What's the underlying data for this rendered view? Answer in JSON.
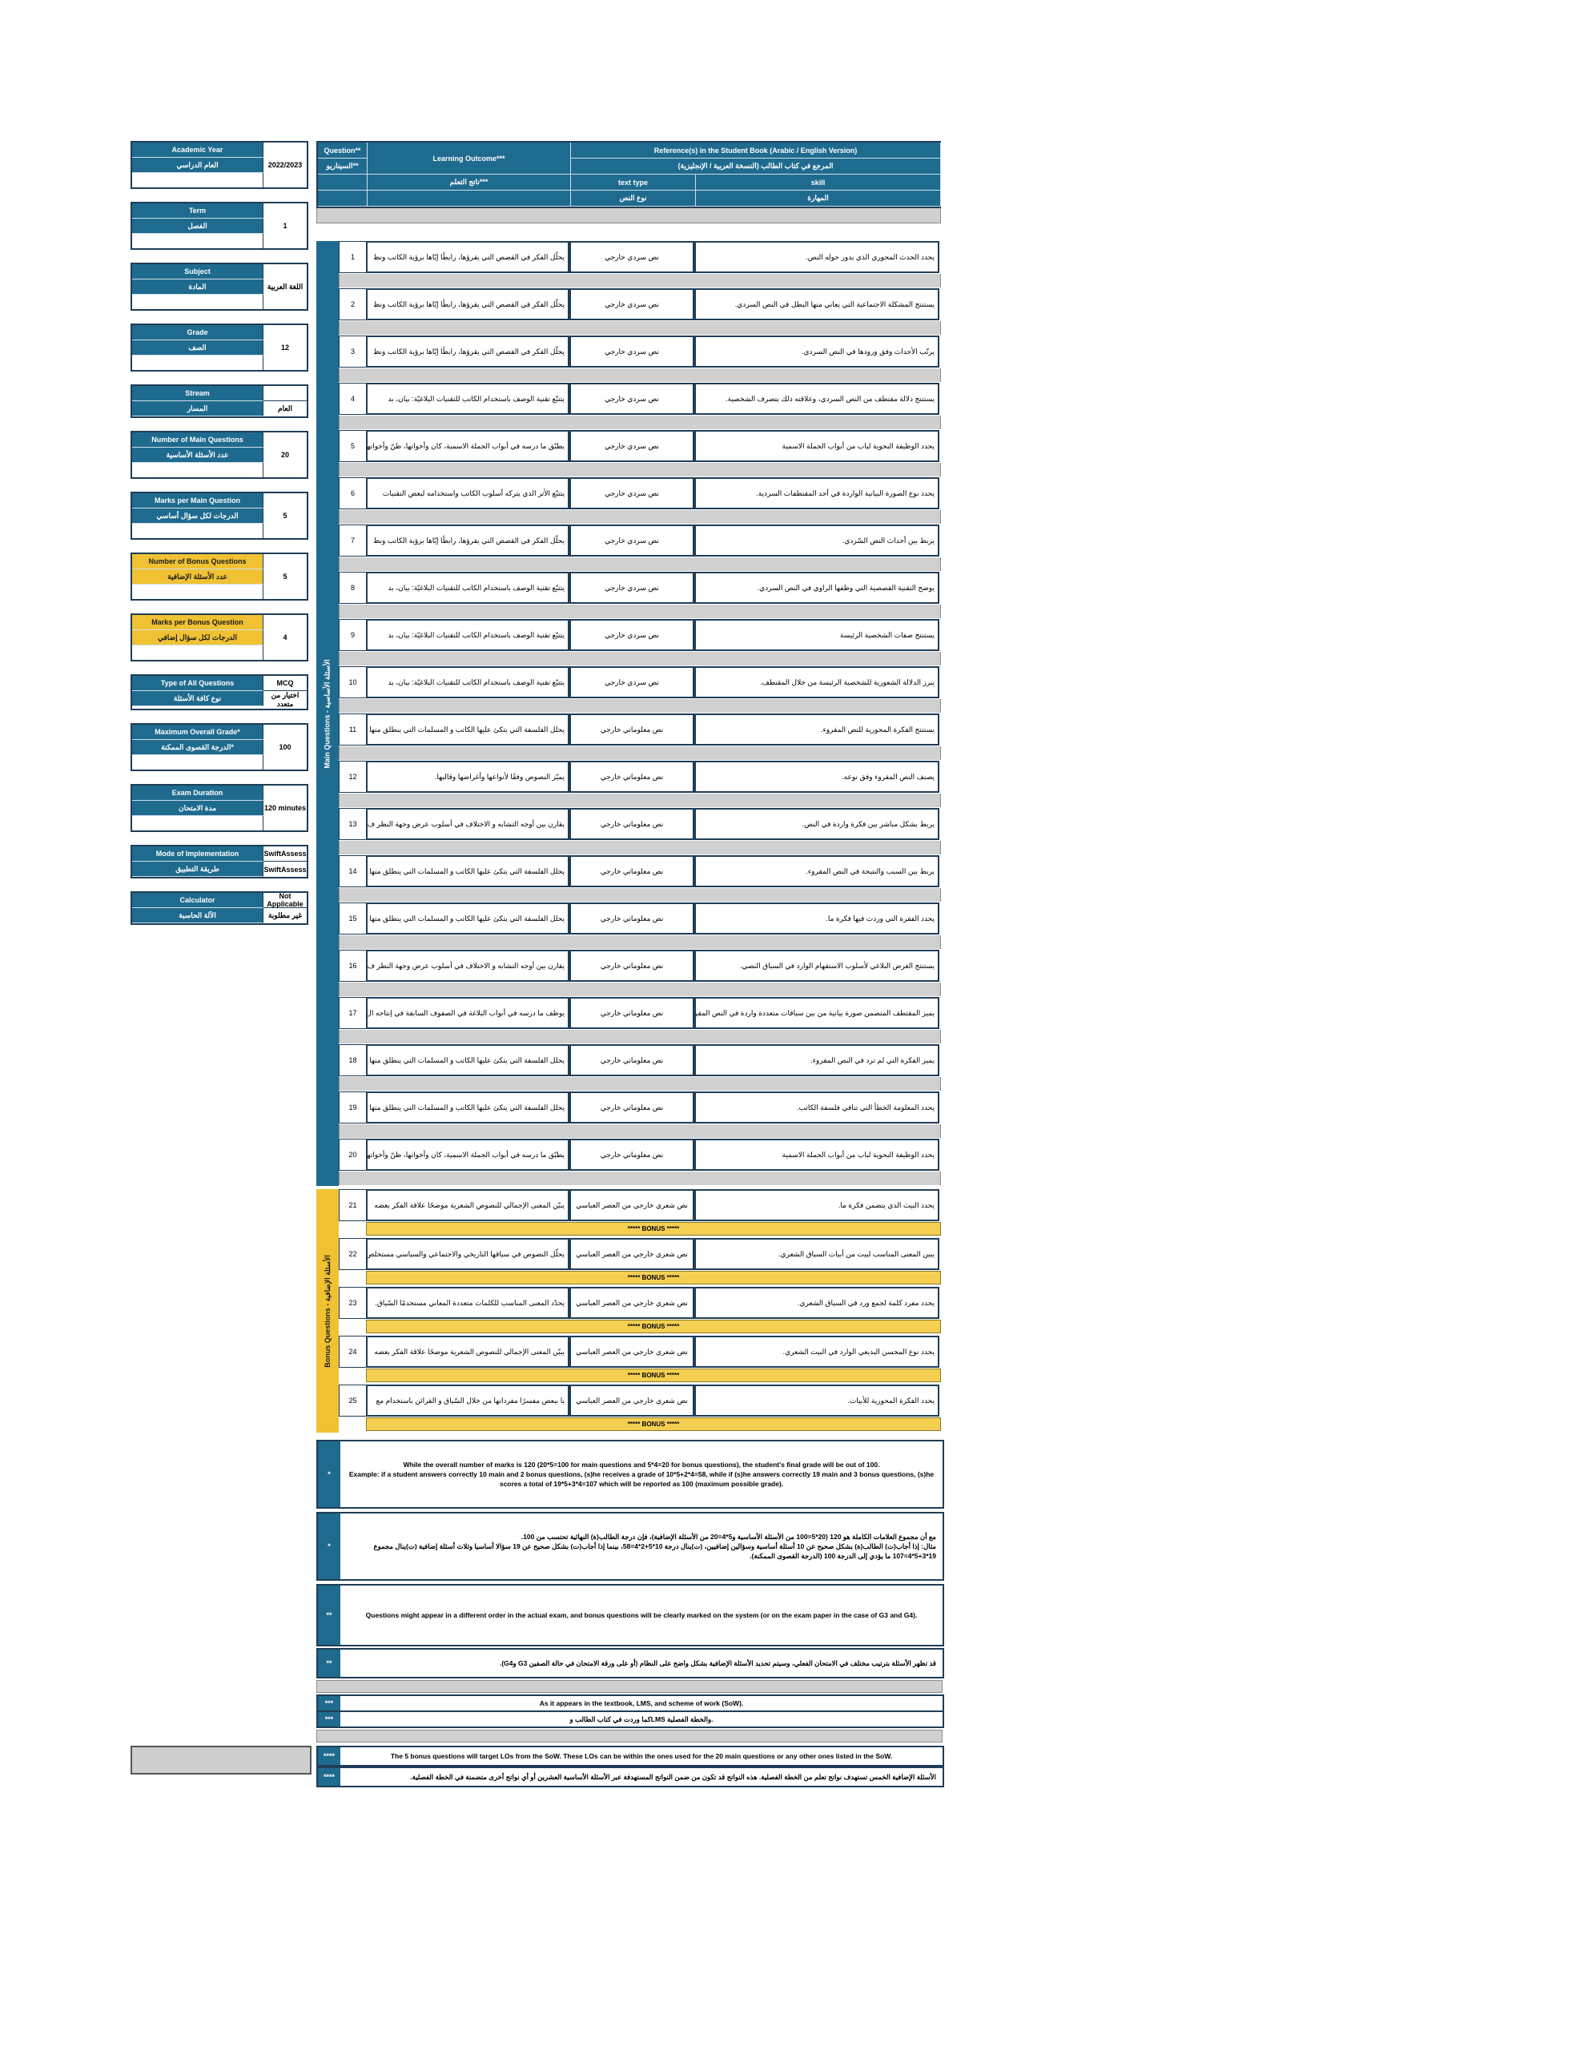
{
  "info": {
    "academic_year_en": "Academic Year",
    "academic_year_ar": "العام الدراسي",
    "academic_year_val": "2022/2023",
    "term_en": "Term",
    "term_ar": "الفصل",
    "term_val": "1",
    "subject_en": "Subject",
    "subject_ar": "المادة",
    "subject_val": "اللغة العربية",
    "grade_en": "Grade",
    "grade_ar": "الصف",
    "grade_val": "12",
    "stream_en": "Stream",
    "stream_ar": "المسار",
    "stream_val": "العام",
    "num_main_en": "Number of Main Questions",
    "num_main_ar": "عدد الأسئلة الأساسية",
    "num_main_val": "20",
    "marks_main_en": "Marks per Main Question",
    "marks_main_ar": "الدرجات لكل سؤال أساسي",
    "marks_main_val": "5",
    "num_bonus_en": "Number of Bonus Questions",
    "num_bonus_ar": "عدد الأسئلة الإضافية",
    "num_bonus_val": "5",
    "marks_bonus_en": "Marks per Bonus Question",
    "marks_bonus_ar": "الدرجات لكل سؤال إضافي",
    "marks_bonus_val": "4",
    "type_en": "Type of All Questions",
    "type_ar": "نوع كافة الأسئلة",
    "type_val1": "MCQ",
    "type_val2": "اختيار من متعدد",
    "max_en": "Maximum Overall Grade*",
    "max_ar": "الدرجة القصوى الممكنة*",
    "max_val": "100",
    "duration_en": "Exam Duration",
    "duration_ar": "مدة الامتحان",
    "duration_val": "120 minutes",
    "mode_en": "Mode of Implementation",
    "mode_ar": "طريقة التطبيق",
    "mode_val1": "SwiftAssess",
    "mode_val2": "SwiftAssess",
    "calc_en": "Calculator",
    "calc_ar": "الآلة الحاسبة",
    "calc_val1": "Not Applicable",
    "calc_val2": "غير مطلوبة"
  },
  "header": {
    "question": "Question**",
    "question_ar": "السيناريو**",
    "lo_en": "Learning Outcome***",
    "lo_ar": "ناتج التعلم***",
    "ref_en": "Reference(s) in the Student Book (Arabic / English Version)",
    "ref_ar": "المرجع في كتاب الطالب (النسخة العربية / الإنجليزية)",
    "text_type_en": "text type",
    "text_type_ar": "نوع النص",
    "skill_en": "skill",
    "skill_ar": "المهارة"
  },
  "side": {
    "main": "Main Questions - الأسئلة الأساسية",
    "bonus": "Bonus Questions - الأسئلة الإضافية"
  },
  "questions": [
    {
      "n": "1",
      "lo": "يحلّل الفكر في القصص التي يقرؤها، رابطًا إيّاها برؤية الكاتب ونظ",
      "type": "نص سردي خارجي",
      "skill": "يحدد الحدث المحوري الذي يدور حوله النص."
    },
    {
      "n": "2",
      "lo": "يحلّل الفكر في القصص التي يقرؤها، رابطًا إيّاها برؤية الكاتب ونظ",
      "type": "نص سردي خارجي",
      "skill": "يستنتج المشكلة الاجتماعية التي يعاني منها البطل في النص السردي."
    },
    {
      "n": "3",
      "lo": "يحلّل الفكر في القصص التي يقرؤها، رابطًا إيّاها برؤية الكاتب ونظ",
      "type": "نص سردي خارجي",
      "skill": "يرتّب الأحداث وفق ورودها في النص السردي."
    },
    {
      "n": "4",
      "lo": "يتتبّع تقنية الوصف باستخدام الكاتب للتقنيات البلاغيّة: بيان، بد",
      "type": "نص سردي خارجي",
      "skill": "يستنتج دلالة مقتطف من النص السردي، وعلاقته ذلك بتصرف الشخصية."
    },
    {
      "n": "5",
      "lo": "يطبّق ما درسه في أبواب الجملة الاسمية، كان وأخواتها، ظنّ وأخواتها",
      "type": "نص سردي خارجي",
      "skill": "يحدد الوظيفة النحوية لباب من أبواب الجملة الاسمية"
    },
    {
      "n": "6",
      "lo": "يتتبّع الأثر الذي يتركه أسلوب الكاتب واستخدامه لبعض التقنيات",
      "type": "نص سردي خارجي",
      "skill": "يحدد نوع الصورة البيانية الواردة في أحد المقتطفات السردية."
    },
    {
      "n": "7",
      "lo": "يحلّل الفكر في القصص التي يقرؤها، رابطًا إيّاها برؤية الكاتب ونظ",
      "type": "نص سردي خارجي",
      "skill": "يربط بين أحداث النص السّردي."
    },
    {
      "n": "8",
      "lo": "يتتبّع تقنية الوصف باستخدام الكاتب للتقنيات البلاغيّة: بيان، بد",
      "type": "نص سردي خارجي",
      "skill": "يوضح التقنية القصصية التي وظفها الراوي في النص السردي."
    },
    {
      "n": "9",
      "lo": "يتتبّع تقنية الوصف باستخدام الكاتب للتقنيات البلاغيّة: بيان، بد",
      "type": "نص سردي خارجي",
      "skill": "يستنتج صفات الشخصية الرئيسة"
    },
    {
      "n": "10",
      "lo": "يتتبّع تقنية الوصف باستخدام الكاتب للتقنيات البلاغيّة: بيان، بد",
      "type": "نص سردي خارجي",
      "skill": "يبرز الدلالة الشعورية للشخصية الرئيسة من خلال المقتطف."
    },
    {
      "n": "11",
      "lo": "يحلل الفلسفة التي يتكئ عليها الكاتب و المسلمات التي ينطلق منها",
      "type": "نص معلوماتي خارجي",
      "skill": "يستنتج الفكرة المحورية للنص المقروء."
    },
    {
      "n": "12",
      "lo": "يميّز النصوص وفقًا لأنواعها وأغراضها وقالبها.",
      "type": "نص معلوماتي خارجي",
      "skill": "يصنف النص المقروء وفق نوعه."
    },
    {
      "n": "13",
      "lo": "يقارن بين أوجه التشابه و الاختلاف في أسلوب عرض وجهة النظر ف",
      "type": "نص معلوماتي خارجي",
      "skill": "يربط بشكل مباشر بين فكرة واردة في النص."
    },
    {
      "n": "14",
      "lo": "يحلل الفلسفة التي يتكئ عليها الكاتب و المسلمات التي ينطلق منها",
      "type": "نص معلوماتي خارجي",
      "skill": "يربط بين السبب والنتيجة في النص المقروء."
    },
    {
      "n": "15",
      "lo": "يحلل الفلسفة التي يتكئ عليها الكاتب و المسلمات التي ينطلق منها",
      "type": "نص معلوماتي خارجي",
      "skill": "يحدد الفقرة التي وردت فيها فكرة ما."
    },
    {
      "n": "16",
      "lo": "يقارن بين أوجه التشابه و الاختلاف في أسلوب عرض وجهة النظر ف",
      "type": "نص معلوماتي خارجي",
      "skill": "يستنتج الغرض البلاغي لأسلوب الاستفهام الوارد في السياق النصي."
    },
    {
      "n": "17",
      "lo": "يوظف ما درسه في أبواب البلاغة في الصفوف السابقة في إنتاجه ال",
      "type": "نص معلوماتي خارجي",
      "skill": "يميز المقتطف المتضمن صورة بيانية من بين سياقات متعددة واردة في النص المقروء"
    },
    {
      "n": "18",
      "lo": "يحلل الفلسفة التي يتكئ عليها الكاتب و المسلمات التي ينطلق منها",
      "type": "نص معلوماتي خارجي",
      "skill": "يميز الفكرة التي لم ترد في النص المقروء."
    },
    {
      "n": "19",
      "lo": "يحلل الفلسفة التي يتكئ عليها الكاتب و المسلمات التي ينطلق منها",
      "type": "نص معلوماتي خارجي",
      "skill": "يحدد المعلومة الخطأ التي تنافي فلسفة الكاتب."
    },
    {
      "n": "20",
      "lo": "يطبّق ما درسه في أبواب الجملة الاسمية، كان وأخواتها، ظنّ وأخواتها",
      "type": "نص معلوماتي خارجي",
      "skill": "يحدد الوظيفة النحوية لباب من أبواب الجملة الاسمية"
    }
  ],
  "bonus_label": "***** BONUS *****",
  "bonus": [
    {
      "n": "21",
      "lo": "يبيّن المعنى الإجمالي للنصوص الشعرية موضحًا علاقة الفكر بعضه",
      "type": "نص شعري خارجي من العصر العباسي",
      "skill": "يحدد البيت الذي يتضمن فكرة ما."
    },
    {
      "n": "22",
      "lo": "يحلّل النصوص في سياقها التاريخي والاجتماعي والسياسي مستخلص",
      "type": "نص شعري خارجي من العصر العباسي",
      "skill": "يبين المعنى المناسب لبيت من أبيات السياق الشعري."
    },
    {
      "n": "23",
      "lo": "يحدّد المعنى المناسب للكلمات متعددة المعاني مستخدمًا السّياق.",
      "type": "نص شعري خارجي من العصر العباسي",
      "skill": "يحدد مفرد كلمة لجمع ورد في السياق الشعري."
    },
    {
      "n": "24",
      "lo": "يبيّن المعنى الإجمالي للنصوص الشعرية موضحًا علاقة الفكر بعضه",
      "type": "نص شعري خارجي من العصر العباسي",
      "skill": "يحدد نوع المحسن البديعي الوارد في البيت الشعري."
    },
    {
      "n": "25",
      "lo": "يا ببعض مفسرًا مفرداتها من خلال السّياق و القرائن باستخدام مع",
      "type": "نص شعري خارجي من العصر العباسي",
      "skill": "يحدد الفكرة المحورية للأبيات."
    }
  ],
  "notes": {
    "star1_mark": "*",
    "star1_en_1": "While the overall number of marks is 120 (20*5=100 for main questions and 5*4=20 for bonus questions), the student's final grade will be out of 100.",
    "star1_en_2": "Example: if a student answers correctly 10 main and 2 bonus questions, (s)he receives a grade of 10*5+2*4=58, while if (s)he answers correctly 19 main and 3 bonus questions, (s)he",
    "star1_en_3": "scores a total of 19*5+3*4=107 which will be reported as 100 (maximum possible grade).",
    "star1_ar_1": "مع أن مجموع العلامات الكاملة هو 120 (20*5=100 من الأسئلة الأساسية و5*4=20 من الأسئلة الإضافية)، فإن درجة الطالب(ة) النهائية تحتسب من 100.",
    "star1_ar_2": "مثال: إذا أجاب(ت) الطالب(ة) بشكل صحيح عن 10 أسئلة أساسية وسؤالين إضافيين، (ت)ينال درجة 10*5+2*4=58، بينما إذا أجاب(ت) بشكل صحيح عن 19 سؤالا أساسيا وثلاث أسئلة إضافية (ت)ينال مجموع",
    "star1_ar_3": "19*5+3*4=107 ما يؤدي إلى الدرجة 100 (الدرجة القصوى الممكنة).",
    "star2_mark": "**",
    "star2_en": "Questions might appear in a different order in the actual exam, and bonus questions will be clearly marked on the system (or on the exam paper in the case of G3 and G4).",
    "star2_ar": "قد تظهر الأسئلة بترتيب مختلف في الامتحان الفعلي، وسيتم تحديد الأسئلة الإضافية بشكل واضح على النظام (أو على ورقة الامتحان في حالة الصفين G3 وG4).",
    "star3_mark": "***",
    "star3_en": "As it appears in the textbook, LMS, and scheme of work (SoW).",
    "star3_ar": "كما وردت في كتاب الطالب وLMS والخطة الفصلية.",
    "star4_mark": "****",
    "star4_en": "The 5 bonus questions will target LOs from the SoW. These LOs can be within the ones used for the 20 main questions or any other ones listed in the SoW.",
    "star4_ar": "الأسئلة الإضافية الخمس تستهدف نواتج تعلم من الخطة الفصلية. هذه النواتج قد تكون من ضمن النواتج المستهدفة عبر الأسئلة الأساسية العشرين أو أي نواتج أخرى متضمنة في الخطة الفصلية."
  }
}
